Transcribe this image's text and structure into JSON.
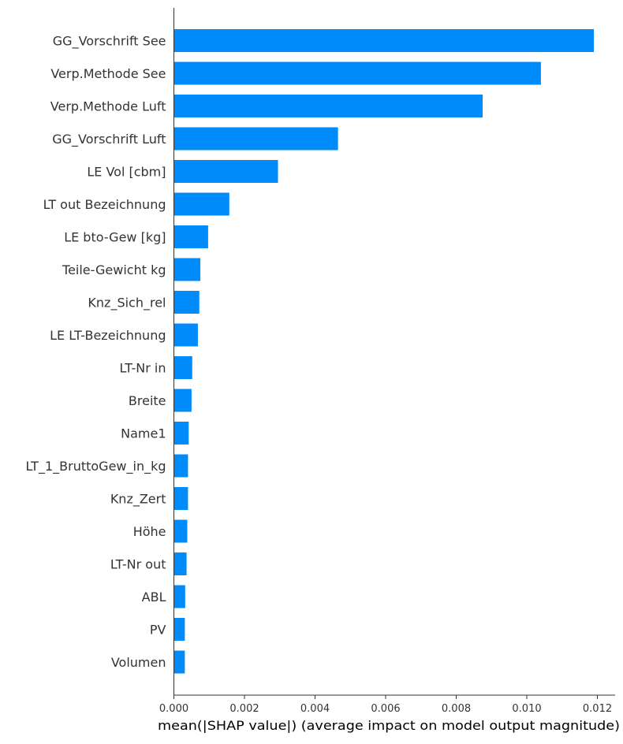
{
  "chart_data": {
    "type": "bar",
    "orientation": "horizontal",
    "categories": [
      "GG_Vorschrift See",
      "Verp.Methode See",
      "Verp.Methode Luft",
      "GG_Vorschrift Luft",
      "LE Vol [cbm]",
      "LT out Bezeichnung",
      "LE bto-Gew [kg]",
      "Teile-Gewicht kg",
      "Knz_Sich_rel",
      "LE LT-Bezeichnung",
      "LT-Nr in",
      "Breite",
      "Name1",
      "LT_1_BruttoGew_in_kg",
      "Knz_Zert",
      "Höhe",
      "LT-Nr out",
      "ABL",
      "PV",
      "Volumen"
    ],
    "values": [
      0.0119,
      0.0104,
      0.00875,
      0.00465,
      0.00295,
      0.00157,
      0.00097,
      0.00075,
      0.00072,
      0.00068,
      0.00052,
      0.0005,
      0.00042,
      0.0004,
      0.0004,
      0.00038,
      0.00036,
      0.00032,
      0.00031,
      0.00031
    ],
    "xlabel": "mean(|SHAP value|) (average impact on model output magnitude)",
    "ylabel": "",
    "xlim": [
      0,
      0.0125
    ],
    "xticks": [
      "0.000",
      "0.002",
      "0.004",
      "0.006",
      "0.008",
      "0.010",
      "0.012"
    ],
    "xtick_values": [
      0,
      0.002,
      0.004,
      0.006,
      0.008,
      0.01,
      0.012
    ],
    "grid": false,
    "bar_color": "#008bfb",
    "axis_color": "#333333"
  }
}
